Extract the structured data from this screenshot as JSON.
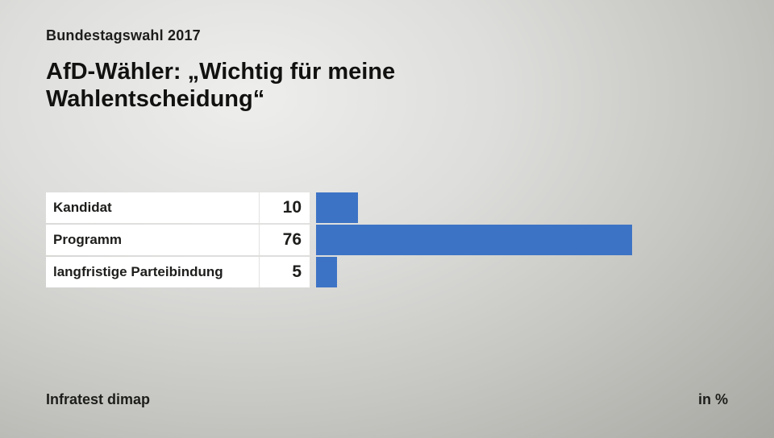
{
  "header": {
    "kicker": "Bundestagswahl 2017",
    "title_line1": "AfD-Wähler: „Wichtig für meine",
    "title_line2": "Wahlentscheidung“"
  },
  "chart_data": {
    "type": "bar",
    "orientation": "horizontal",
    "title": "AfD-Wähler: „Wichtig für meine Wahlentscheidung“",
    "kicker": "Bundestagswahl 2017",
    "categories": [
      "Kandidat",
      "Programm",
      "langfristige Parteibindung"
    ],
    "values": [
      10,
      76,
      5
    ],
    "unit": "in %",
    "source": "Infratest dimap",
    "bar_color": "#3d73c5",
    "xlim": [
      0,
      100
    ],
    "grid": false,
    "legend": false
  },
  "footer": {
    "source": "Infratest dimap",
    "unit": "in %"
  }
}
